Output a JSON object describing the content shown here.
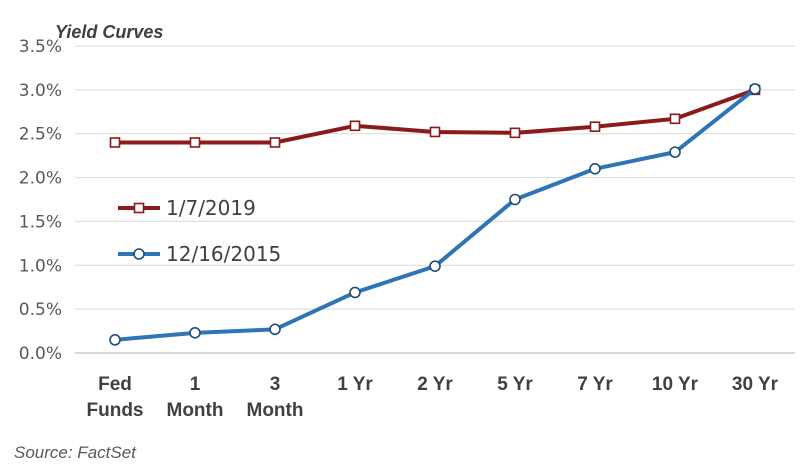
{
  "chart_data": {
    "type": "line",
    "title": "Yield Curves",
    "source": "Source: FactSet",
    "categories": [
      [
        "Fed",
        "Funds"
      ],
      [
        "1",
        "Month"
      ],
      [
        "3",
        "Month"
      ],
      [
        "1 Yr"
      ],
      [
        "2 Yr"
      ],
      [
        "5 Yr"
      ],
      [
        "7 Yr"
      ],
      [
        "10 Yr"
      ],
      [
        "30 Yr"
      ]
    ],
    "ylim": [
      0,
      3.5
    ],
    "yticks": [
      "0.0%",
      "0.5%",
      "1.0%",
      "1.5%",
      "2.0%",
      "2.5%",
      "3.0%",
      "3.5%"
    ],
    "ytick_values": [
      0,
      0.5,
      1.0,
      1.5,
      2.0,
      2.5,
      3.0,
      3.5
    ],
    "grid": true,
    "legend_position": "left-middle",
    "series": [
      {
        "name": "1/7/2019",
        "color": "#8b1a1a",
        "marker": "square",
        "values": [
          2.4,
          2.4,
          2.4,
          2.59,
          2.52,
          2.51,
          2.58,
          2.67,
          3.0
        ]
      },
      {
        "name": "12/16/2015",
        "color": "#2e75b6",
        "marker": "circle",
        "values": [
          0.15,
          0.23,
          0.27,
          0.69,
          0.99,
          1.75,
          2.1,
          2.29,
          3.01
        ]
      }
    ]
  }
}
